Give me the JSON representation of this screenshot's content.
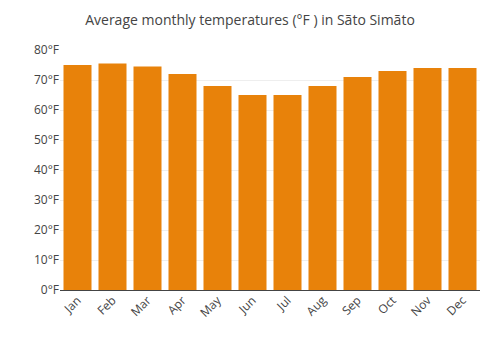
{
  "chart_data": {
    "type": "bar",
    "title": "Average monthly temperatures (°F ) in Sãto Simãto",
    "categories": [
      "Jan",
      "Feb",
      "Mar",
      "Apr",
      "May",
      "Jun",
      "Jul",
      "Aug",
      "Sep",
      "Oct",
      "Nov",
      "Dec"
    ],
    "values": [
      75.0,
      75.5,
      74.5,
      72.0,
      68.0,
      65.0,
      65.0,
      68.0,
      71.0,
      73.0,
      74.0,
      74.0
    ],
    "color": "#E8820A",
    "ylim": [
      0,
      80
    ],
    "yticks": [
      {
        "value": 0,
        "label": "0°F"
      },
      {
        "value": 10,
        "label": "10°F"
      },
      {
        "value": 20,
        "label": "20°F"
      },
      {
        "value": 30,
        "label": "30°F"
      },
      {
        "value": 40,
        "label": "40°F"
      },
      {
        "value": 50,
        "label": "50°F"
      },
      {
        "value": 60,
        "label": "60°F"
      },
      {
        "value": 70,
        "label": "70°F"
      },
      {
        "value": 80,
        "label": "80°F"
      }
    ],
    "grid": true
  }
}
